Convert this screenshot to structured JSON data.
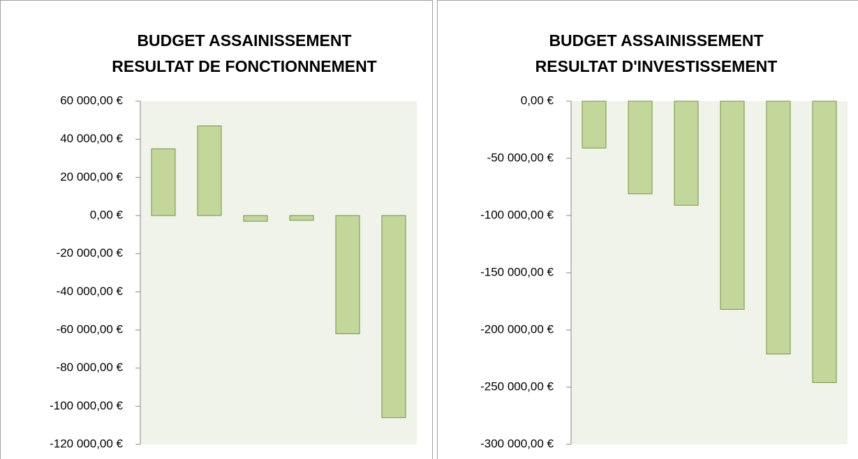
{
  "chart_data": [
    {
      "type": "bar",
      "title": [
        "BUDGET ASSAINISSEMENT",
        "RESULTAT DE FONCTIONNEMENT"
      ],
      "categories": [
        null,
        null,
        null,
        null,
        null,
        null
      ],
      "values": [
        35000,
        47000,
        -3000,
        -2500,
        -62000,
        -106000
      ],
      "color": "#c4d79b",
      "edge_color": "#76923c",
      "plot_background": "#eff3ea",
      "ylim": [
        -120000,
        60000
      ],
      "yticks": [
        {
          "value": -120000,
          "label": "-120 000,00 €"
        },
        {
          "value": -100000,
          "label": "-100 000,00 €"
        },
        {
          "value": -80000,
          "label": "-80 000,00 €"
        },
        {
          "value": -60000,
          "label": "-60 000,00 €"
        },
        {
          "value": -40000,
          "label": "-40 000,00 €"
        },
        {
          "value": -20000,
          "label": "-20 000,00 €"
        },
        {
          "value": 0,
          "label": "0,00 €"
        },
        {
          "value": 20000,
          "label": "20 000,00 €"
        },
        {
          "value": 40000,
          "label": "40 000,00 €"
        },
        {
          "value": 60000,
          "label": "60 000,00 €"
        }
      ],
      "grid": false
    },
    {
      "type": "bar",
      "title": [
        "BUDGET ASSAINISSEMENT",
        "RESULTAT D'INVESTISSEMENT"
      ],
      "categories": [
        null,
        null,
        null,
        null,
        null,
        null
      ],
      "values": [
        -41000,
        -81000,
        -91000,
        -182000,
        -221000,
        -246000
      ],
      "color": "#c4d79b",
      "edge_color": "#76923c",
      "plot_background": "#eff3ea",
      "ylim": [
        -300000,
        0
      ],
      "yticks": [
        {
          "value": -300000,
          "label": "-300 000,00 €"
        },
        {
          "value": -250000,
          "label": "-250 000,00 €"
        },
        {
          "value": -200000,
          "label": "-200 000,00 €"
        },
        {
          "value": -150000,
          "label": "-150 000,00 €"
        },
        {
          "value": -100000,
          "label": "-100 000,00 €"
        },
        {
          "value": -50000,
          "label": "-50 000,00 €"
        },
        {
          "value": 0,
          "label": "0,00 €"
        }
      ],
      "grid": false
    }
  ]
}
